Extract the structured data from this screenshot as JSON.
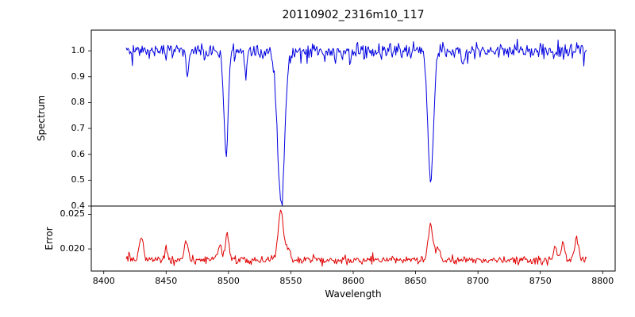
{
  "chart_data": {
    "type": "line",
    "title": "20110902_2316m10_117",
    "xlabel": "Wavelength",
    "xlim": [
      8390,
      8810
    ],
    "xticks": [
      8400,
      8450,
      8500,
      8550,
      8600,
      8650,
      8700,
      8750,
      8800
    ],
    "x_start": 8418,
    "x_end": 8787,
    "n_points": 520,
    "seed": 3,
    "line_width": 1,
    "axis_color": "#000000",
    "background": "#ffffff",
    "panels": [
      {
        "name": "spectrum",
        "ylabel": "Spectrum",
        "color": "#0000e0",
        "ylim": [
          0.4,
          1.08
        ],
        "yticks": [
          0.4,
          0.5,
          0.6,
          0.7,
          0.8,
          0.9,
          1.0
        ],
        "ytick_decimals": 1,
        "baseline": 1.0,
        "noise_sigma": 0.015,
        "spike_prob": 0.035,
        "spike_max": 0.055,
        "spike_dir": "down",
        "lines": [
          {
            "center": 8467.0,
            "depth": 0.1,
            "width": 0.9
          },
          {
            "center": 8498.0,
            "depth": 0.39,
            "width": 1.7
          },
          {
            "center": 8513.5,
            "depth": 0.07,
            "width": 0.9
          },
          {
            "center": 8542.1,
            "depth": 0.575,
            "width": 2.9
          },
          {
            "center": 8598.0,
            "depth": 0.05,
            "width": 0.9
          },
          {
            "center": 8662.1,
            "depth": 0.5,
            "width": 2.3
          },
          {
            "center": 8688.0,
            "depth": 0.05,
            "width": 0.9
          }
        ]
      },
      {
        "name": "error",
        "ylabel": "Error",
        "color": "#e00000",
        "ylim": [
          0.0168,
          0.0262
        ],
        "yticks": [
          0.02,
          0.025
        ],
        "ytick_decimals": 3,
        "baseline": 0.0184,
        "noise_sigma": 0.00028,
        "spike_prob": 0.03,
        "spike_max": 0.0009,
        "spike_dir": "up",
        "peaks": [
          {
            "center": 8430,
            "height": 0.0036,
            "width": 1.6
          },
          {
            "center": 8450,
            "height": 0.0018,
            "width": 1.3
          },
          {
            "center": 8466,
            "height": 0.0027,
            "width": 1.5
          },
          {
            "center": 8493,
            "height": 0.0022,
            "width": 1.3
          },
          {
            "center": 8499,
            "height": 0.0034,
            "width": 1.6
          },
          {
            "center": 8542,
            "height": 0.0073,
            "width": 2.1
          },
          {
            "center": 8548,
            "height": 0.0015,
            "width": 1.5
          },
          {
            "center": 8662,
            "height": 0.0054,
            "width": 1.9
          },
          {
            "center": 8668,
            "height": 0.0018,
            "width": 1.4
          },
          {
            "center": 8762,
            "height": 0.002,
            "width": 1.3
          },
          {
            "center": 8768,
            "height": 0.0024,
            "width": 1.4
          },
          {
            "center": 8779,
            "height": 0.0031,
            "width": 1.6
          }
        ]
      }
    ]
  }
}
